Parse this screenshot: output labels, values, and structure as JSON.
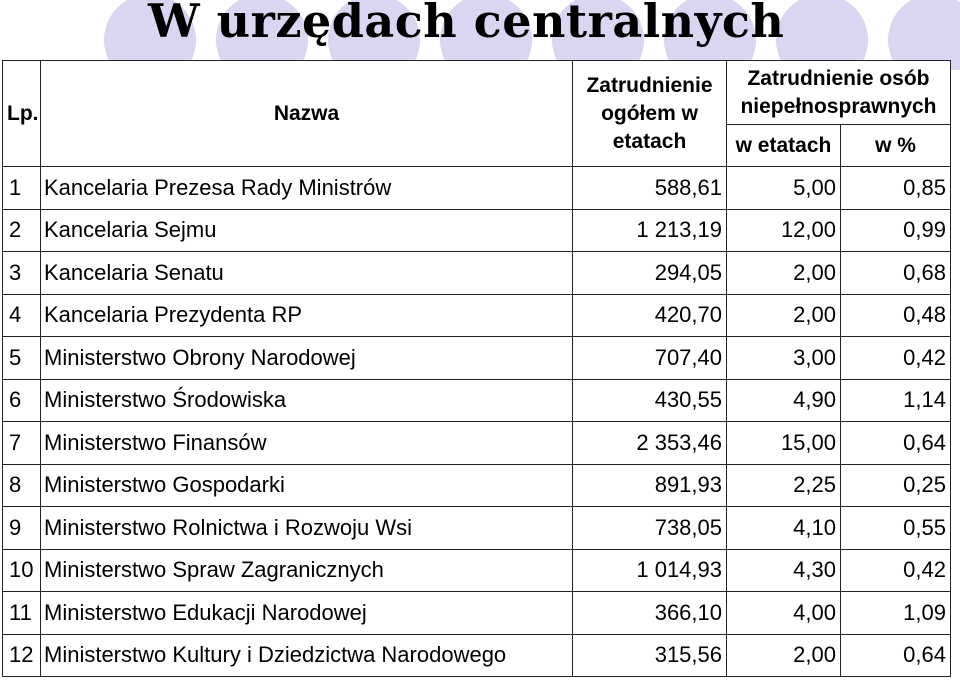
{
  "page": {
    "title": "W urzędach centralnych",
    "accent_color": "#d8d6f0"
  },
  "table": {
    "headers": {
      "lp": "Lp.",
      "name": "Nazwa",
      "total": "Zatrudnienie ogółem w etatach",
      "disabled_group": "Zatrudnienie osób niepełnosprawnych",
      "disabled_fte": "w etatach",
      "disabled_pct": "w %"
    },
    "rows": [
      {
        "lp": "1",
        "name": "Kancelaria Prezesa Rady Ministrów",
        "total": "588,61",
        "fte": "5,00",
        "pct": "0,85"
      },
      {
        "lp": "2",
        "name": "Kancelaria Sejmu",
        "total": "1 213,19",
        "fte": "12,00",
        "pct": "0,99"
      },
      {
        "lp": "3",
        "name": "Kancelaria Senatu",
        "total": "294,05",
        "fte": "2,00",
        "pct": "0,68"
      },
      {
        "lp": "4",
        "name": "Kancelaria Prezydenta RP",
        "total": "420,70",
        "fte": "2,00",
        "pct": "0,48"
      },
      {
        "lp": "5",
        "name": "Ministerstwo Obrony Narodowej",
        "total": "707,40",
        "fte": "3,00",
        "pct": "0,42"
      },
      {
        "lp": "6",
        "name": "Ministerstwo Środowiska",
        "total": "430,55",
        "fte": "4,90",
        "pct": "1,14"
      },
      {
        "lp": "7",
        "name": "Ministerstwo Finansów",
        "total": "2 353,46",
        "fte": "15,00",
        "pct": "0,64"
      },
      {
        "lp": "8",
        "name": "Ministerstwo Gospodarki",
        "total": "891,93",
        "fte": "2,25",
        "pct": "0,25"
      },
      {
        "lp": "9",
        "name": "Ministerstwo Rolnictwa i Rozwoju Wsi",
        "total": "738,05",
        "fte": "4,10",
        "pct": "0,55"
      },
      {
        "lp": "10",
        "name": "Ministerstwo Spraw Zagranicznych",
        "total": "1 014,93",
        "fte": "4,30",
        "pct": "0,42"
      },
      {
        "lp": "11",
        "name": "Ministerstwo Edukacji Narodowej",
        "total": "366,10",
        "fte": "4,00",
        "pct": "1,09"
      },
      {
        "lp": "12",
        "name": "Ministerstwo Kultury i Dziedzictwa Narodowego",
        "total": "315,56",
        "fte": "2,00",
        "pct": "0,64"
      }
    ]
  }
}
